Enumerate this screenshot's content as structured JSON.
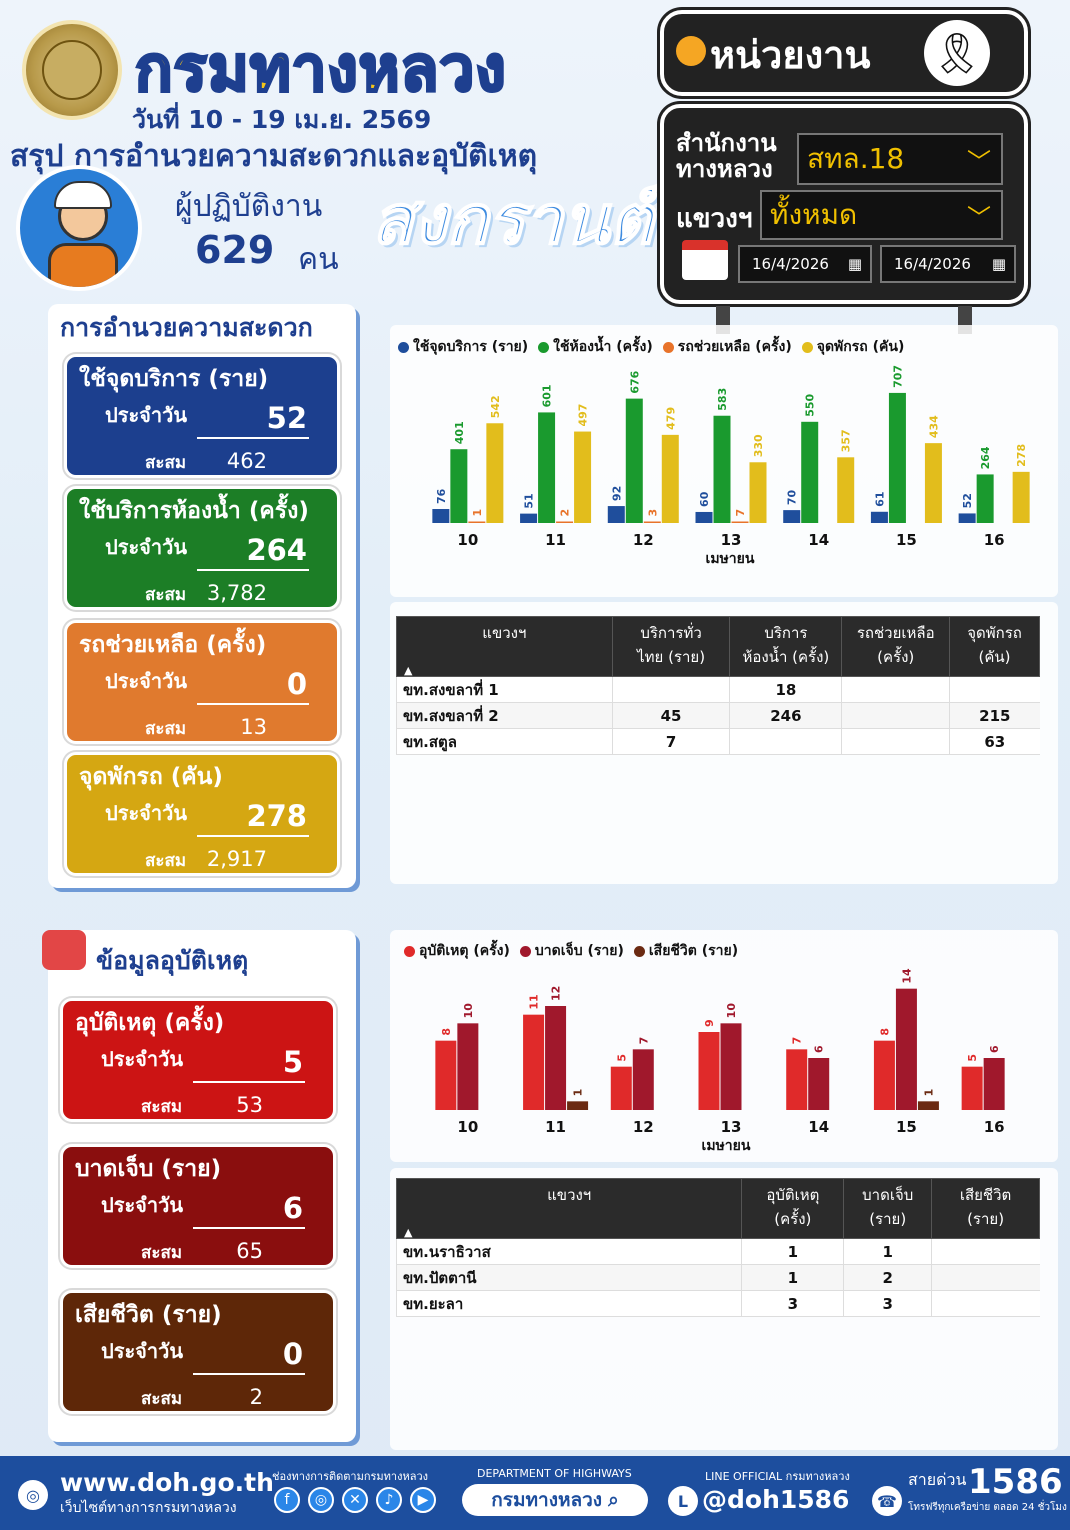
{
  "header": {
    "dept_name": "กรมทางหลวง",
    "date_range": "วันที่ 10 - 19 เม.ย. 2569",
    "summary_title": "สรุป การอำนวยความสะดวกและอุบัติเหตุ",
    "worker_label": "ผู้ปฏิบัติงาน",
    "worker_count": "629",
    "worker_unit": "คน",
    "festival": "สงกรานต์"
  },
  "filters": {
    "unit_title": "หน่วยงาน",
    "office_label": "สำนักงาน\nทางหลวง",
    "office_value": "สทล.18",
    "district_label": "แขวงฯ",
    "district_value": "ทั้งหมด",
    "date_from": "16/4/2026",
    "date_to": "16/4/2026"
  },
  "convenience": {
    "title": "การอำนวยความสะดวก",
    "daily_label": "ประจำวัน",
    "cumulative_label": "สะสม",
    "cards": [
      {
        "title": "ใช้จุดบริการ (ราย)",
        "daily": "52",
        "cumulative": "462"
      },
      {
        "title": "ใช้บริการห้องน้ำ (ครั้ง)",
        "daily": "264",
        "cumulative": "3,782"
      },
      {
        "title": "รถช่วยเหลือ (ครั้ง)",
        "daily": "0",
        "cumulative": "13"
      },
      {
        "title": "จุดพักรถ (คัน)",
        "daily": "278",
        "cumulative": "2,917"
      }
    ]
  },
  "accidents": {
    "title": "ข้อมูลอุบัติเหตุ",
    "daily_label": "ประจำวัน",
    "cumulative_label": "สะสม",
    "cards": [
      {
        "title": "อุบัติเหตุ (ครั้ง)",
        "daily": "5",
        "cumulative": "53"
      },
      {
        "title": "บาดเจ็บ (ราย)",
        "daily": "6",
        "cumulative": "65"
      },
      {
        "title": "เสียชีวิต (ราย)",
        "daily": "0",
        "cumulative": "2"
      }
    ]
  },
  "table1": {
    "headers": [
      "แขวงฯ",
      "บริการทั่ว\nไทย (ราย)",
      "บริการ\nห้องน้ำ (ครั้ง)",
      "รถช่วยเหลือ\n(ครั้ง)",
      "จุดพักรถ\n(คัน)"
    ],
    "rows": [
      [
        "ขท.สงขลาที่ 1",
        "",
        "18",
        "",
        ""
      ],
      [
        "ขท.สงขลาที่ 2",
        "45",
        "246",
        "",
        "215"
      ],
      [
        "ขท.สตูล",
        "7",
        "",
        "",
        "63"
      ]
    ]
  },
  "table2": {
    "headers": [
      "แขวงฯ",
      "อุบัติเหตุ\n(ครั้ง)",
      "บาดเจ็บ\n(ราย)",
      "เสียชีวิต\n(ราย)"
    ],
    "rows": [
      [
        "ขท.นราธิวาส",
        "1",
        "1",
        ""
      ],
      [
        "ขท.ปัตตานี",
        "1",
        "2",
        ""
      ],
      [
        "ขท.ยะลา",
        "3",
        "3",
        ""
      ]
    ]
  },
  "chart_data": [
    {
      "type": "bar",
      "title": "",
      "xlabel": "เมษายน",
      "categories": [
        "10",
        "11",
        "12",
        "13",
        "14",
        "15",
        "16"
      ],
      "series": [
        {
          "name": "ใช้จุดบริการ (ราย)",
          "color": "#1f4e9c",
          "values": [
            76,
            51,
            92,
            60,
            70,
            61,
            52
          ]
        },
        {
          "name": "ใช้ห้องน้ำ (ครั้ง)",
          "color": "#1a9a2e",
          "values": [
            401,
            601,
            676,
            583,
            550,
            707,
            264
          ]
        },
        {
          "name": "รถช่วยเหลือ (ครั้ง)",
          "color": "#e8732a",
          "values": [
            1,
            2,
            3,
            7,
            null,
            null,
            null
          ]
        },
        {
          "name": "จุดพักรถ (คัน)",
          "color": "#e2bd1c",
          "values": [
            542,
            497,
            479,
            330,
            357,
            434,
            278
          ]
        }
      ],
      "ylim": [
        0,
        750
      ]
    },
    {
      "type": "bar",
      "title": "",
      "xlabel": "เมษายน",
      "categories": [
        "10",
        "11",
        "12",
        "13",
        "14",
        "15",
        "16"
      ],
      "series": [
        {
          "name": "อุบัติเหตุ (ครั้ง)",
          "color": "#e02a2a",
          "values": [
            8,
            11,
            5,
            9,
            7,
            8,
            5
          ]
        },
        {
          "name": "บาดเจ็บ (ราย)",
          "color": "#a0182c",
          "values": [
            10,
            12,
            7,
            10,
            6,
            14,
            6
          ]
        },
        {
          "name": "เสียชีวิต (ราย)",
          "color": "#6b2a12",
          "values": [
            null,
            1,
            null,
            null,
            null,
            1,
            null
          ]
        }
      ],
      "ylim": [
        0,
        15
      ]
    }
  ],
  "footer": {
    "website": "www.doh.go.th",
    "website_sub": "เว็บไซต์ทางการกรมทางหลวง",
    "channel_label": "ช่องทางการติดตามกรมทางหลวง",
    "dept_en": "DEPARTMENT OF HIGHWAYS",
    "search_text": "กรมทางหลวง",
    "line_label": "LINE OFFICIAL กรมทางหลวง",
    "line_id": "@doh1586",
    "hotline_label": "สายด่วน",
    "hotline": "1586",
    "hotline_sub": "โทรฟรีทุกเครือข่าย ตลอด 24 ชั่วโมง"
  }
}
